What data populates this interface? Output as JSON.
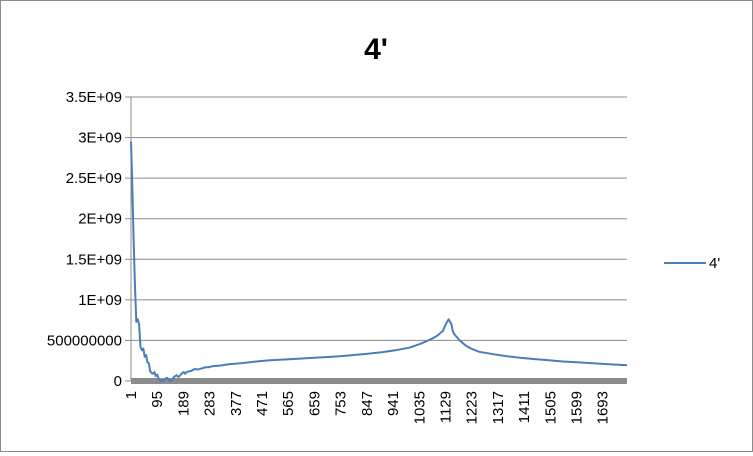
{
  "chart_data": {
    "type": "line",
    "title": "4'",
    "xlabel": "",
    "ylabel": "",
    "ylim": [
      0,
      3500000000
    ],
    "y_ticks": [
      {
        "value": 0,
        "label": "0"
      },
      {
        "value": 500000000,
        "label": "500000000"
      },
      {
        "value": 1000000000,
        "label": "1E+09"
      },
      {
        "value": 1500000000,
        "label": "1.5E+09"
      },
      {
        "value": 2000000000,
        "label": "2E+09"
      },
      {
        "value": 2500000000,
        "label": "2.5E+09"
      },
      {
        "value": 3000000000,
        "label": "3E+09"
      },
      {
        "value": 3500000000,
        "label": "3.5E+09"
      }
    ],
    "x_tick_labels": [
      "1",
      "95",
      "189",
      "283",
      "377",
      "471",
      "565",
      "659",
      "753",
      "847",
      "941",
      "1035",
      "1129",
      "1223",
      "1317",
      "1411",
      "1505",
      "1599",
      "1693"
    ],
    "xlim": [
      1,
      1780
    ],
    "grid": true,
    "legend_position": "right",
    "series": [
      {
        "name": "4'",
        "color": "#4a7ebb",
        "x": [
          1,
          5,
          10,
          15,
          20,
          25,
          30,
          35,
          40,
          45,
          50,
          55,
          60,
          65,
          70,
          75,
          80,
          85,
          90,
          95,
          100,
          105,
          110,
          115,
          120,
          125,
          130,
          135,
          140,
          145,
          150,
          155,
          160,
          165,
          170,
          175,
          180,
          185,
          190,
          195,
          200,
          210,
          220,
          230,
          240,
          250,
          260,
          270,
          280,
          290,
          300,
          320,
          340,
          360,
          380,
          400,
          450,
          500,
          550,
          600,
          650,
          700,
          750,
          800,
          850,
          900,
          950,
          1000,
          1040,
          1080,
          1100,
          1120,
          1130,
          1140,
          1150,
          1155,
          1160,
          1165,
          1170,
          1175,
          1180,
          1190,
          1200,
          1220,
          1250,
          1300,
          1350,
          1400,
          1450,
          1500,
          1550,
          1600,
          1650,
          1700,
          1750,
          1780
        ],
        "y": [
          2950000000,
          2500000000,
          1800000000,
          1200000000,
          730000000,
          760000000,
          700000000,
          420000000,
          380000000,
          400000000,
          300000000,
          320000000,
          230000000,
          220000000,
          120000000,
          100000000,
          90000000,
          110000000,
          60000000,
          80000000,
          30000000,
          10000000,
          0,
          10000000,
          0,
          30000000,
          40000000,
          20000000,
          0,
          10000000,
          10000000,
          50000000,
          60000000,
          70000000,
          50000000,
          60000000,
          80000000,
          100000000,
          110000000,
          90000000,
          110000000,
          120000000,
          130000000,
          150000000,
          140000000,
          150000000,
          160000000,
          170000000,
          170000000,
          180000000,
          185000000,
          190000000,
          200000000,
          210000000,
          215000000,
          220000000,
          240000000,
          255000000,
          265000000,
          275000000,
          285000000,
          295000000,
          305000000,
          320000000,
          335000000,
          355000000,
          380000000,
          410000000,
          460000000,
          520000000,
          560000000,
          620000000,
          700000000,
          760000000,
          700000000,
          620000000,
          580000000,
          560000000,
          540000000,
          520000000,
          500000000,
          470000000,
          440000000,
          400000000,
          360000000,
          330000000,
          305000000,
          285000000,
          270000000,
          255000000,
          240000000,
          230000000,
          220000000,
          210000000,
          200000000,
          195000000
        ]
      }
    ]
  }
}
